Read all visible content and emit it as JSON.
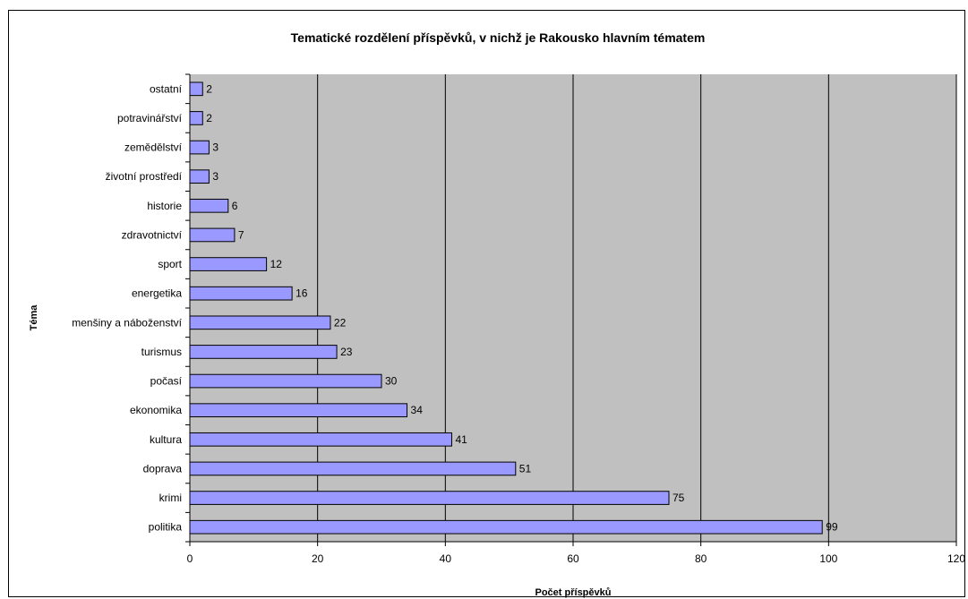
{
  "chart_data": {
    "type": "bar",
    "orientation": "horizontal",
    "title": "Tematické rozdělení příspěvků, v nichž je Rakousko hlavním tématem",
    "xlabel": "Počet příspěvků",
    "ylabel": "Téma",
    "categories": [
      "politika",
      "krimi",
      "doprava",
      "kultura",
      "ekonomika",
      "počasí",
      "turismus",
      "menšiny a náboženství",
      "energetika",
      "sport",
      "zdravotnictví",
      "historie",
      "životní prostředí",
      "zemědělství",
      "potravinářství",
      "ostatní"
    ],
    "values": [
      99,
      75,
      51,
      41,
      34,
      30,
      23,
      22,
      16,
      12,
      7,
      6,
      3,
      3,
      2,
      2
    ],
    "xlim": [
      0,
      120
    ],
    "xticks": [
      0,
      20,
      40,
      60,
      80,
      100,
      120
    ],
    "grid": true,
    "legend": "none",
    "colors": {
      "bar_fill": "#9999ff",
      "bar_stroke": "#000000",
      "plot_background": "#c0c0c0",
      "gridline": "#000000"
    }
  }
}
